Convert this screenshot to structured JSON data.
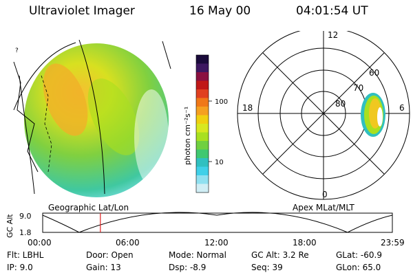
{
  "header": {
    "instrument": "Ultraviolet Imager",
    "date": "16 May 00",
    "time": "04:01:54 UT"
  },
  "colorbar": {
    "unit_label": "photon cm⁻²s⁻¹",
    "ticks": [
      "100",
      "10"
    ],
    "colors": [
      "#1a0a3a",
      "#3d1760",
      "#8a1040",
      "#c01818",
      "#e04020",
      "#f07818",
      "#f5a020",
      "#f0d010",
      "#d8e820",
      "#a8e020",
      "#70d040",
      "#40c870",
      "#30c0c0",
      "#40d0e8",
      "#90e0f0",
      "#d0eef5"
    ]
  },
  "left_image": {
    "caption": "Geographic Lat/Lon",
    "caption_mark": "?"
  },
  "polar_plot": {
    "caption": "Apex MLat/MLT",
    "mlt_labels": [
      "12",
      "18",
      "6",
      "0"
    ],
    "lat_labels": [
      "60",
      "70",
      "80"
    ]
  },
  "altitude_track": {
    "axis_label": "GC Alt",
    "y_ticks": [
      "9.0",
      "1.8"
    ],
    "x_ticks": [
      "00:00",
      "06:00",
      "12:00",
      "18:00",
      "23:59"
    ],
    "current_time_fraction": 0.165
  },
  "info": {
    "filter": "Flt: LBHL",
    "ip": "IP:  9.0",
    "door": "Door: Open",
    "gain": "Gain: 13",
    "mode": "Mode: Normal",
    "dsp": "Dsp:   -8.9",
    "gc_alt": "GC Alt: 3.2 Re",
    "seq": "Seq: 39",
    "glat": "GLat:  -60.9",
    "glon": "GLon:  65.0"
  }
}
